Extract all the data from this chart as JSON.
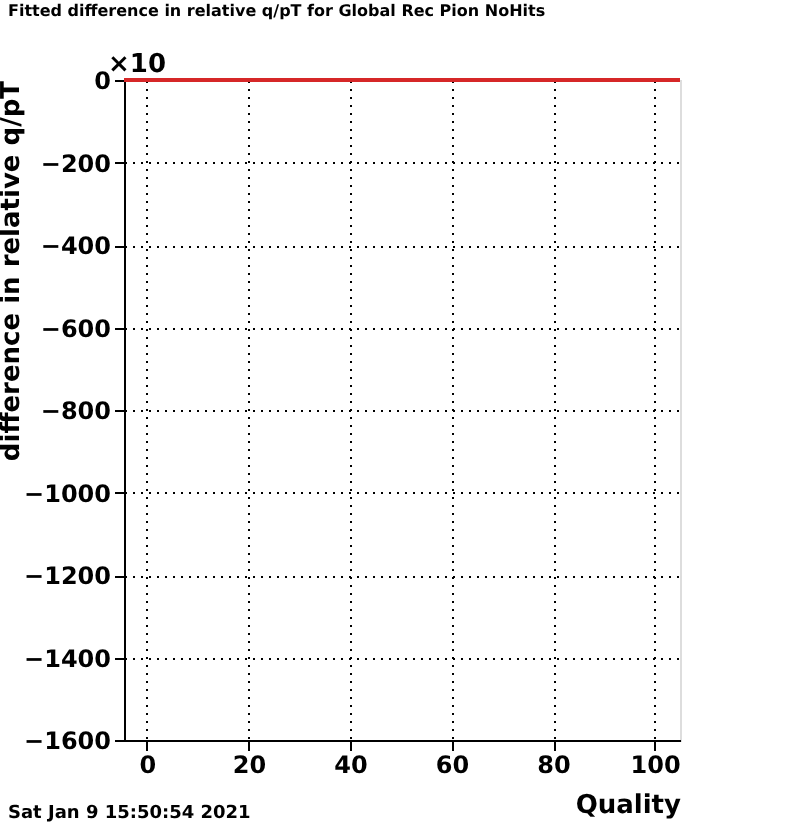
{
  "chart_data": {
    "type": "line",
    "title": "Fitted difference in relative q/pT for Global Rec Pion NoHits",
    "xlabel": "Quality",
    "ylabel": "difference in relative q/pT",
    "annotations": [
      "×10",
      "Sat Jan  9 15:50:54 2021"
    ],
    "series": [
      {
        "color": "#d62728",
        "x": [
          -4.5,
          105
        ],
        "values": [
          0,
          0
        ]
      }
    ],
    "xlim": [
      -4.5,
      105
    ],
    "xticks": [
      0,
      20,
      40,
      60,
      80,
      100
    ],
    "ylim": [
      -1600,
      0
    ],
    "yticks": [
      -1600,
      -1400,
      -1200,
      -1000,
      -800,
      -600,
      -400,
      -200,
      0
    ],
    "grid": true,
    "marker": "none",
    "line_style": "solid"
  }
}
